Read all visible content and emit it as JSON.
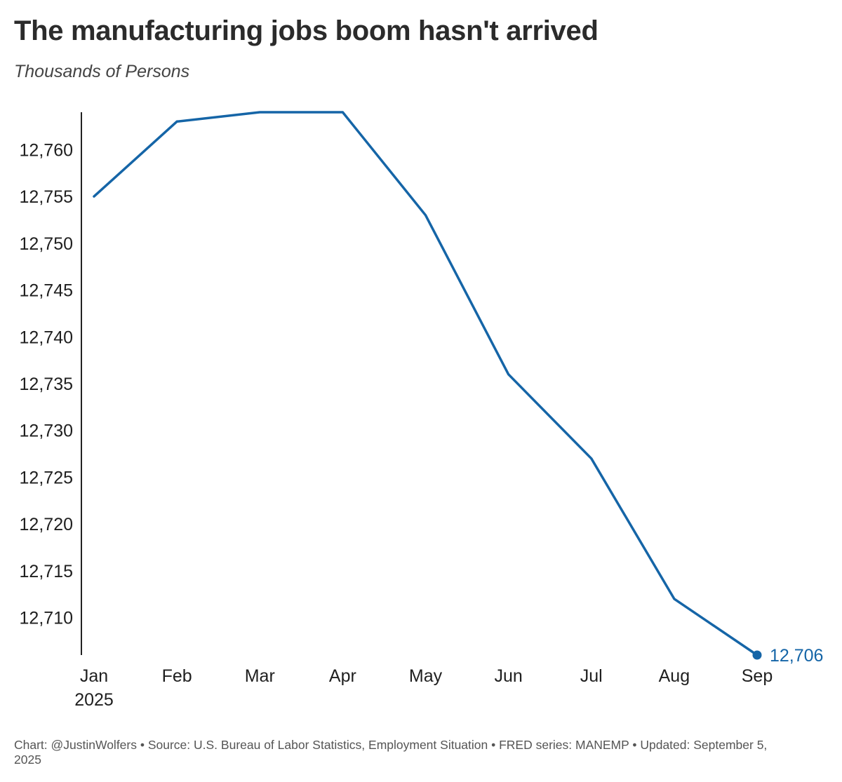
{
  "chart_data": {
    "type": "line",
    "title": "The manufacturing jobs boom hasn't arrived",
    "subtitle": "Thousands of Persons",
    "xlabel": "",
    "ylabel": "",
    "categories": [
      "Jan",
      "Feb",
      "Mar",
      "Apr",
      "May",
      "Jun",
      "Jul",
      "Aug",
      "Sep"
    ],
    "first_category_sublabel": "2025",
    "series": [
      {
        "name": "MANEMP",
        "values": [
          12755,
          12763,
          12764,
          12764,
          12753,
          12736,
          12727,
          12712,
          12706
        ],
        "color": "#1565a7"
      }
    ],
    "y_ticks": [
      12710,
      12715,
      12720,
      12725,
      12730,
      12735,
      12740,
      12745,
      12750,
      12755,
      12760
    ],
    "y_tick_labels": [
      "12,710",
      "12,715",
      "12,720",
      "12,725",
      "12,730",
      "12,735",
      "12,740",
      "12,745",
      "12,750",
      "12,755",
      "12,760"
    ],
    "ylim": [
      12706,
      12764
    ],
    "grid": false,
    "end_label": "12,706"
  },
  "footer": {
    "text": "Chart: @JustinWolfers • Source: U.S. Bureau of Labor Statistics, Employment Situation • FRED series: MANEMP • Updated: September 5, 2025"
  }
}
